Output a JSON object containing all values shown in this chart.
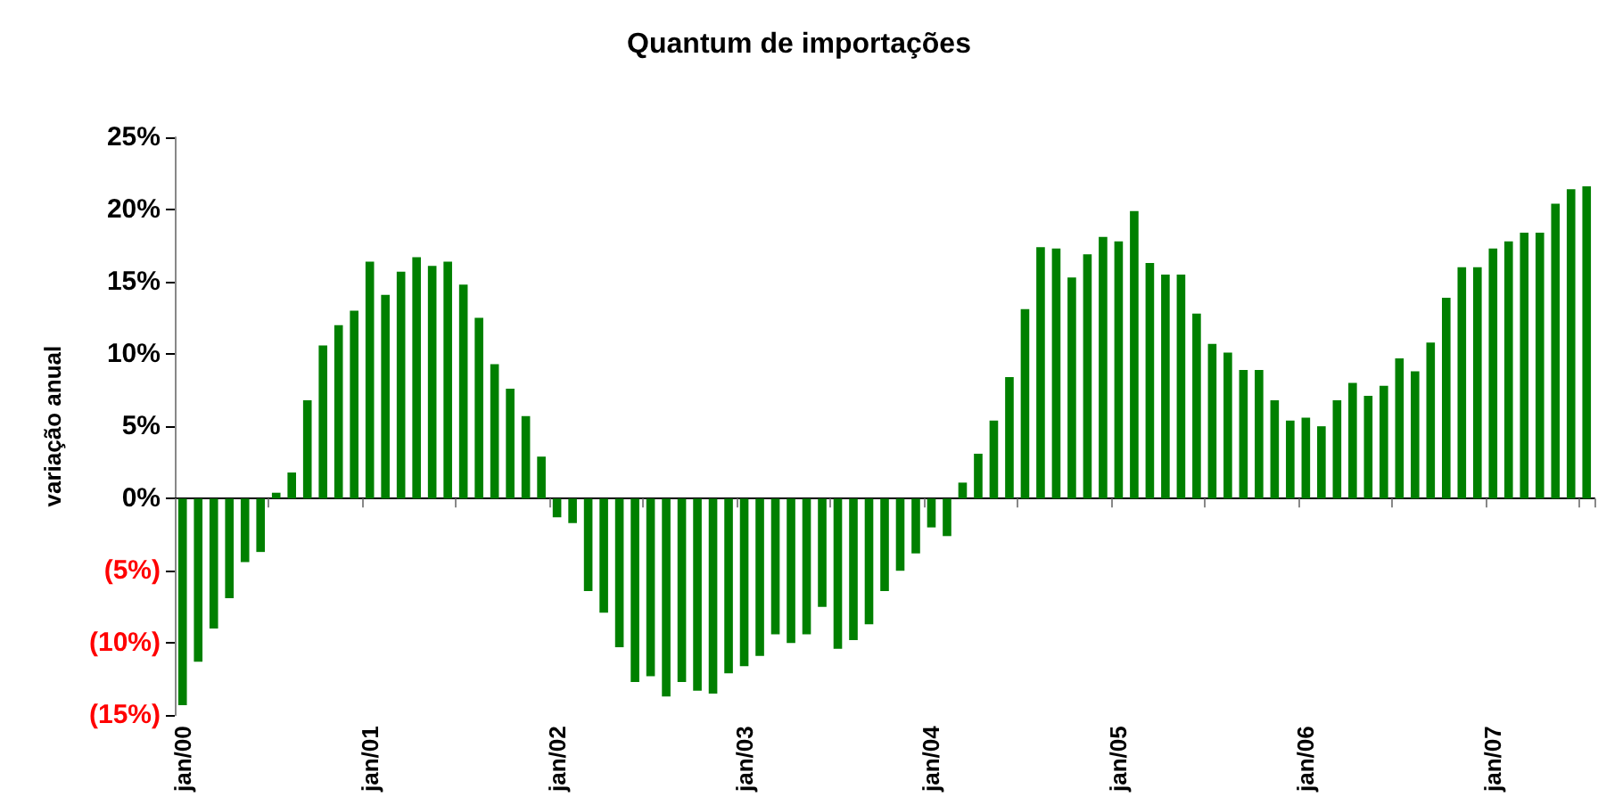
{
  "chart_data": {
    "type": "bar",
    "title": "Quantum de importações",
    "ylabel": "variação anual",
    "categories": [
      "jan/00",
      null,
      null,
      null,
      null,
      null,
      null,
      null,
      null,
      null,
      null,
      null,
      "jan/01",
      null,
      null,
      null,
      null,
      null,
      null,
      null,
      null,
      null,
      null,
      null,
      "jan/02",
      null,
      null,
      null,
      null,
      null,
      null,
      null,
      null,
      null,
      null,
      null,
      "jan/03",
      null,
      null,
      null,
      null,
      null,
      null,
      null,
      null,
      null,
      null,
      null,
      "jan/04",
      null,
      null,
      null,
      null,
      null,
      null,
      null,
      null,
      null,
      null,
      null,
      "jan/05",
      null,
      null,
      null,
      null,
      null,
      null,
      null,
      null,
      null,
      null,
      null,
      "jan/06",
      null,
      null,
      null,
      null,
      null,
      null,
      null,
      null,
      null,
      null,
      null,
      "jan/07",
      null,
      null,
      null,
      null,
      null,
      null
    ],
    "values": [
      -14.3,
      -11.3,
      -9.0,
      -6.9,
      -4.4,
      -3.7,
      0.4,
      1.8,
      6.8,
      10.6,
      12.0,
      13.0,
      16.4,
      14.1,
      15.7,
      16.7,
      16.1,
      16.4,
      14.8,
      12.5,
      9.3,
      7.6,
      5.7,
      2.9,
      -1.3,
      -1.7,
      -6.4,
      -7.9,
      -10.3,
      -12.7,
      -12.3,
      -13.7,
      -12.7,
      -13.3,
      -13.5,
      -12.1,
      -11.6,
      -10.9,
      -9.4,
      -10.0,
      -9.4,
      -7.5,
      -10.4,
      -9.8,
      -8.7,
      -6.4,
      -5.0,
      -3.8,
      -2.0,
      -2.6,
      1.1,
      3.1,
      5.4,
      8.4,
      13.1,
      17.4,
      17.3,
      15.3,
      16.9,
      18.1,
      17.8,
      19.9,
      16.3,
      15.5,
      15.5,
      12.8,
      10.7,
      10.1,
      8.9,
      8.9,
      6.8,
      5.4,
      5.6,
      5.0,
      6.8,
      8.0,
      7.1,
      7.8,
      9.7,
      8.8,
      10.8,
      13.9,
      16.0,
      16.0,
      17.3,
      17.8,
      18.4,
      18.4,
      20.4,
      21.4,
      21.6
    ],
    "color": "#008000",
    "ylim": [
      -15,
      25
    ],
    "yticks": [
      {
        "value": -15,
        "label": "(15%)"
      },
      {
        "value": -10,
        "label": "(10%)"
      },
      {
        "value": -5,
        "label": "(5%)"
      },
      {
        "value": 0,
        "label": "0%"
      },
      {
        "value": 5,
        "label": "5%"
      },
      {
        "value": 10,
        "label": "10%"
      },
      {
        "value": 15,
        "label": "15%"
      },
      {
        "value": 20,
        "label": "20%"
      },
      {
        "value": 25,
        "label": "25%"
      }
    ]
  }
}
